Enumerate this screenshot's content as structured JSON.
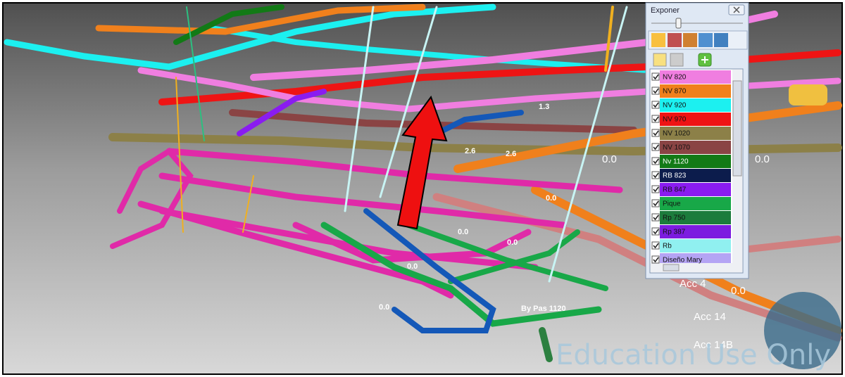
{
  "panel": {
    "title": "Exponer",
    "layers": [
      {
        "name": "NV 820",
        "color": "#f07ee0",
        "checked": true
      },
      {
        "name": "NV 870",
        "color": "#f0801c",
        "checked": true
      },
      {
        "name": "NV 920",
        "color": "#1cf0f0",
        "checked": true
      },
      {
        "name": "NV 970",
        "color": "#ee1414",
        "checked": true
      },
      {
        "name": "NV 1020",
        "color": "#8c8048",
        "checked": true
      },
      {
        "name": "NV 1070",
        "color": "#8a4444",
        "checked": true
      },
      {
        "name": "Nv 1120",
        "color": "#127a16",
        "checked": true
      },
      {
        "name": "RB 823",
        "color": "#0c1c4c",
        "checked": true
      },
      {
        "name": "RB 847",
        "color": "#8a1cf0",
        "checked": true
      },
      {
        "name": "Pique",
        "color": "#18a848",
        "checked": true
      },
      {
        "name": "Rp 750",
        "color": "#1c7c3c",
        "checked": true
      },
      {
        "name": "Rp 387",
        "color": "#7c1ce0",
        "checked": true
      },
      {
        "name": "Rb",
        "color": "#90f0f0",
        "checked": true
      },
      {
        "name": "Diseño Mary",
        "color": "#b4a4f4",
        "checked": true
      }
    ]
  },
  "view": {
    "labels": [
      "0.0",
      "0.0",
      "0.0",
      "0.0",
      "0.0",
      "0.0",
      "0.0",
      "2.6",
      "2.6",
      "1.3",
      "0.0",
      "Acc 4",
      "Acc 14",
      "Acc 14B",
      "By Pas 1120"
    ],
    "watermark": "Education Use Only"
  }
}
